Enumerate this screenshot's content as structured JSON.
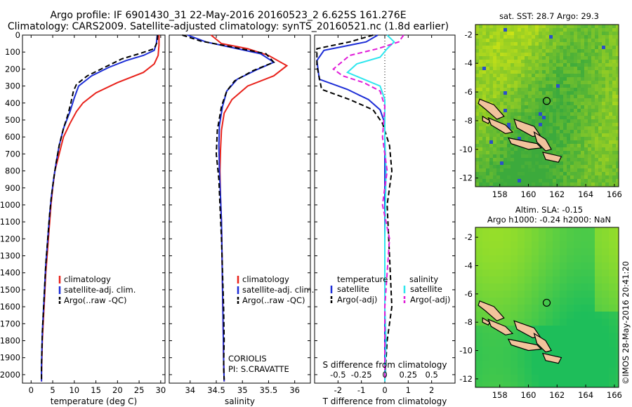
{
  "title_line1": "Argo profile: IF 6901430_31 22-May-2016 20160523_2 6.625S 161.276E",
  "title_line2": "Climatology: CARS2009. Satellite-adjusted climatology: synTS_20160521.nc (1.8d earlier)",
  "credit": "©IMOS 28-May-2016 20:41:20",
  "colors": {
    "climatology": "#e8221b",
    "satellite": "#1c2dd6",
    "argo": "#000000",
    "sat_sal": "#2ee6ee",
    "argo_sal": "#e01bd8"
  },
  "chart_data": [
    {
      "type": "line",
      "name": "temperature",
      "xlabel": "temperature (deg C)",
      "ylabel": "",
      "xlim": [
        -2,
        31
      ],
      "ylim": [
        2050,
        0
      ],
      "xticks": [
        "0",
        "5",
        "10",
        "15",
        "20",
        "25",
        "30"
      ],
      "xtick_values": [
        0,
        5,
        10,
        15,
        20,
        25,
        30
      ],
      "yticks": [
        "0",
        "100",
        "200",
        "300",
        "400",
        "500",
        "600",
        "700",
        "800",
        "900",
        "1000",
        "1100",
        "1200",
        "1300",
        "1400",
        "1500",
        "1600",
        "1700",
        "1800",
        "1900",
        "2000"
      ],
      "ytick_values": [
        0,
        100,
        200,
        300,
        400,
        500,
        600,
        700,
        800,
        900,
        1000,
        1100,
        1200,
        1300,
        1400,
        1500,
        1600,
        1700,
        1800,
        1900,
        2000
      ],
      "legend": [
        "climatology",
        "satellite-adj. clim.",
        "Argo(..raw -QC)"
      ],
      "series": [
        {
          "name": "climatology",
          "color_key": "climatology",
          "dash": false,
          "points": [
            [
              29.6,
              0
            ],
            [
              29.6,
              60
            ],
            [
              29.4,
              120
            ],
            [
              28.5,
              170
            ],
            [
              26,
              220
            ],
            [
              20,
              280
            ],
            [
              15,
              340
            ],
            [
              12,
              400
            ],
            [
              10.5,
              450
            ],
            [
              9,
              520
            ],
            [
              7.5,
              600
            ],
            [
              6.5,
              700
            ],
            [
              5.5,
              800
            ],
            [
              5,
              900
            ],
            [
              4.6,
              1000
            ],
            [
              4.3,
              1100
            ],
            [
              4,
              1200
            ],
            [
              3.7,
              1300
            ],
            [
              3.4,
              1400
            ],
            [
              3.2,
              1500
            ],
            [
              3,
              1600
            ],
            [
              2.8,
              1700
            ],
            [
              2.6,
              1800
            ],
            [
              2.5,
              1900
            ],
            [
              2.4,
              2000
            ],
            [
              2.4,
              2040
            ]
          ]
        },
        {
          "name": "satellite-adj. clim.",
          "color_key": "satellite",
          "dash": false,
          "points": [
            [
              29.2,
              0
            ],
            [
              29,
              50
            ],
            [
              28.5,
              90
            ],
            [
              26,
              120
            ],
            [
              22,
              150
            ],
            [
              18,
              190
            ],
            [
              14,
              240
            ],
            [
              11,
              300
            ],
            [
              10,
              370
            ],
            [
              9,
              450
            ],
            [
              7.5,
              550
            ],
            [
              6.5,
              650
            ],
            [
              5.8,
              750
            ],
            [
              5.2,
              850
            ],
            [
              4.7,
              950
            ],
            [
              4.3,
              1050
            ],
            [
              4,
              1150
            ],
            [
              3.7,
              1250
            ],
            [
              3.4,
              1350
            ],
            [
              3.2,
              1450
            ],
            [
              3,
              1550
            ],
            [
              2.8,
              1650
            ],
            [
              2.6,
              1750
            ],
            [
              2.5,
              1850
            ],
            [
              2.4,
              1950
            ],
            [
              2.4,
              2040
            ]
          ]
        },
        {
          "name": "Argo(..raw -QC)",
          "color_key": "argo",
          "dash": true,
          "points": [
            [
              29.3,
              0
            ],
            [
              29.2,
              40
            ],
            [
              28.5,
              80
            ],
            [
              25,
              110
            ],
            [
              21,
              140
            ],
            [
              17,
              190
            ],
            [
              13,
              240
            ],
            [
              10.5,
              290
            ],
            [
              9.8,
              330
            ],
            [
              9.2,
              400
            ],
            [
              8.5,
              470
            ],
            [
              7.5,
              550
            ],
            [
              6.5,
              650
            ],
            [
              5.8,
              750
            ],
            [
              5.2,
              850
            ],
            [
              4.7,
              950
            ],
            [
              4.3,
              1050
            ],
            [
              4,
              1150
            ],
            [
              3.7,
              1250
            ],
            [
              3.4,
              1350
            ],
            [
              3.2,
              1450
            ],
            [
              3,
              1550
            ],
            [
              2.8,
              1650
            ],
            [
              2.6,
              1750
            ],
            [
              2.5,
              1850
            ],
            [
              2.4,
              1950
            ],
            [
              2.4,
              2030
            ]
          ]
        }
      ]
    },
    {
      "type": "line",
      "name": "salinity",
      "xlabel": "salinity",
      "ylabel": "",
      "xlim": [
        33.6,
        36.3
      ],
      "ylim": [
        2050,
        0
      ],
      "xticks": [
        "34",
        "34.5",
        "35",
        "35.5",
        "36"
      ],
      "xtick_values": [
        34,
        34.5,
        35,
        35.5,
        36
      ],
      "legend": [
        "climatology",
        "satellite-adj. clim.",
        "Argo(..raw -QC)"
      ],
      "annotation": [
        "CORIOLIS",
        "PI: S.CRAVATTE"
      ],
      "series": [
        {
          "name": "climatology",
          "color_key": "climatology",
          "dash": false,
          "points": [
            [
              34.4,
              0
            ],
            [
              34.6,
              50
            ],
            [
              35.1,
              80
            ],
            [
              35.5,
              120
            ],
            [
              35.85,
              180
            ],
            [
              35.6,
              240
            ],
            [
              35.1,
              300
            ],
            [
              34.8,
              380
            ],
            [
              34.65,
              460
            ],
            [
              34.6,
              560
            ],
            [
              34.58,
              680
            ],
            [
              34.57,
              800
            ],
            [
              34.58,
              950
            ],
            [
              34.6,
              1100
            ],
            [
              34.61,
              1300
            ],
            [
              34.62,
              1500
            ],
            [
              34.63,
              1700
            ],
            [
              34.64,
              1900
            ],
            [
              34.65,
              2040
            ]
          ]
        },
        {
          "name": "satellite-adj. clim.",
          "color_key": "satellite",
          "dash": false,
          "points": [
            [
              33.95,
              0
            ],
            [
              34.3,
              40
            ],
            [
              34.9,
              80
            ],
            [
              35.35,
              110
            ],
            [
              35.6,
              160
            ],
            [
              35.3,
              200
            ],
            [
              34.9,
              260
            ],
            [
              34.7,
              330
            ],
            [
              34.62,
              420
            ],
            [
              34.56,
              530
            ],
            [
              34.55,
              650
            ],
            [
              34.56,
              800
            ],
            [
              34.58,
              950
            ],
            [
              34.6,
              1100
            ],
            [
              34.61,
              1300
            ],
            [
              34.62,
              1500
            ],
            [
              34.63,
              1700
            ],
            [
              34.64,
              1900
            ],
            [
              34.65,
              2040
            ]
          ]
        },
        {
          "name": "Argo(..raw -QC)",
          "color_key": "argo",
          "dash": true,
          "points": [
            [
              33.85,
              0
            ],
            [
              34.2,
              35
            ],
            [
              34.8,
              70
            ],
            [
              35.45,
              110
            ],
            [
              35.6,
              160
            ],
            [
              35.2,
              210
            ],
            [
              34.85,
              270
            ],
            [
              34.7,
              330
            ],
            [
              34.6,
              420
            ],
            [
              34.52,
              560
            ],
            [
              34.5,
              700
            ],
            [
              34.55,
              850
            ],
            [
              34.57,
              1000
            ],
            [
              34.6,
              1200
            ],
            [
              34.62,
              1400
            ],
            [
              34.64,
              1600
            ],
            [
              34.65,
              1800
            ],
            [
              34.64,
              1950
            ],
            [
              34.65,
              2030
            ]
          ]
        }
      ]
    },
    {
      "type": "line",
      "name": "difference",
      "xlabel": "T difference from climatology",
      "xlabel2": "S difference from climatology",
      "xlim": [
        -3,
        3
      ],
      "ylim": [
        2050,
        0
      ],
      "xticks": [
        "-2",
        "-1",
        "0",
        "1",
        "2"
      ],
      "xtick_values": [
        -2,
        -1,
        0,
        1,
        2
      ],
      "xticks_top": [
        "-0.5",
        "-0.25",
        "0",
        "0.25",
        "0.5"
      ],
      "xtick_top_values": [
        -2,
        -1,
        0,
        1,
        2
      ],
      "legend_headers": [
        "temperature",
        "salinity"
      ],
      "legend": [
        "satellite",
        "Argo(-adj)",
        "satellite",
        "Argo(-adj)"
      ],
      "series": [
        {
          "name": "T satellite",
          "color_key": "satellite",
          "dash": false,
          "points": [
            [
              -0.3,
              0
            ],
            [
              -0.8,
              40
            ],
            [
              -2.6,
              90
            ],
            [
              -2.9,
              150
            ],
            [
              -2.8,
              260
            ],
            [
              -1.6,
              320
            ],
            [
              -0.7,
              380
            ],
            [
              -0.2,
              440
            ],
            [
              0,
              520
            ],
            [
              0,
              800
            ],
            [
              0,
              1200
            ],
            [
              0,
              1600
            ],
            [
              0,
              2040
            ]
          ]
        },
        {
          "name": "T Argo(-adj)",
          "color_key": "argo",
          "dash": true,
          "points": [
            [
              -0.5,
              0
            ],
            [
              -1.5,
              40
            ],
            [
              -2.9,
              80
            ],
            [
              -2.9,
              180
            ],
            [
              -2.7,
              320
            ],
            [
              -1.5,
              380
            ],
            [
              -0.5,
              440
            ],
            [
              -0.1,
              520
            ],
            [
              0.2,
              650
            ],
            [
              0.3,
              800
            ],
            [
              0.1,
              1000
            ],
            [
              0.2,
              1300
            ],
            [
              0.3,
              1600
            ],
            [
              0.1,
              1800
            ],
            [
              0,
              2030
            ]
          ]
        },
        {
          "name": "S satellite",
          "color_key": "sat_sal",
          "dash": false,
          "points": [
            [
              0.1,
              0
            ],
            [
              0.4,
              40
            ],
            [
              0.1,
              80
            ],
            [
              -0.2,
              130
            ],
            [
              -1.2,
              170
            ],
            [
              -1.6,
              220
            ],
            [
              -0.9,
              260
            ],
            [
              -0.2,
              300
            ],
            [
              0,
              380
            ],
            [
              0,
              600
            ],
            [
              0.05,
              800
            ],
            [
              0,
              1200
            ],
            [
              0,
              1600
            ],
            [
              0.05,
              1800
            ],
            [
              0,
              2040
            ]
          ]
        },
        {
          "name": "S Argo(-adj)",
          "color_key": "argo_sal",
          "dash": true,
          "points": [
            [
              0.8,
              0
            ],
            [
              0.6,
              40
            ],
            [
              -0.3,
              80
            ],
            [
              -1.5,
              120
            ],
            [
              -2.2,
              200
            ],
            [
              -1.8,
              240
            ],
            [
              -0.9,
              280
            ],
            [
              -0.2,
              330
            ],
            [
              0,
              420
            ],
            [
              -0.1,
              600
            ],
            [
              0.1,
              800
            ],
            [
              -0.1,
              1000
            ],
            [
              0.2,
              1200
            ],
            [
              0.1,
              1400
            ],
            [
              0,
              1600
            ],
            [
              0,
              1800
            ],
            [
              0,
              2030
            ]
          ]
        }
      ]
    },
    {
      "type": "heatmap",
      "name": "sst_map",
      "title": "sat. SST: 28.7  Argo: 29.3",
      "xticks": [
        "158",
        "160",
        "162",
        "164",
        "166"
      ],
      "xtick_values": [
        158,
        160,
        162,
        164,
        166
      ],
      "yticks": [
        "-2",
        "-4",
        "-6",
        "-8",
        "-10",
        "-12"
      ],
      "ytick_values": [
        -2,
        -4,
        -6,
        -8,
        -10,
        -12
      ],
      "xlim": [
        156.3,
        166.3
      ],
      "ylim": [
        -12.6,
        -1.3
      ],
      "profile_position": [
        161.276,
        -6.625
      ]
    },
    {
      "type": "heatmap",
      "name": "sla_map",
      "title_lines": [
        "Altim. SLA: -0.15",
        "Argo h1000: -0.24 h2000: NaN"
      ],
      "xticks": [
        "158",
        "160",
        "162",
        "164",
        "166"
      ],
      "xtick_values": [
        158,
        160,
        162,
        164,
        166
      ],
      "yticks": [
        "-2",
        "-4",
        "-6",
        "-8",
        "-10",
        "-12"
      ],
      "ytick_values": [
        -2,
        -4,
        -6,
        -8,
        -10,
        -12
      ],
      "xlim": [
        156.3,
        166.3
      ],
      "ylim": [
        -12.6,
        -1.3
      ],
      "profile_position": [
        161.276,
        -6.625
      ]
    }
  ]
}
